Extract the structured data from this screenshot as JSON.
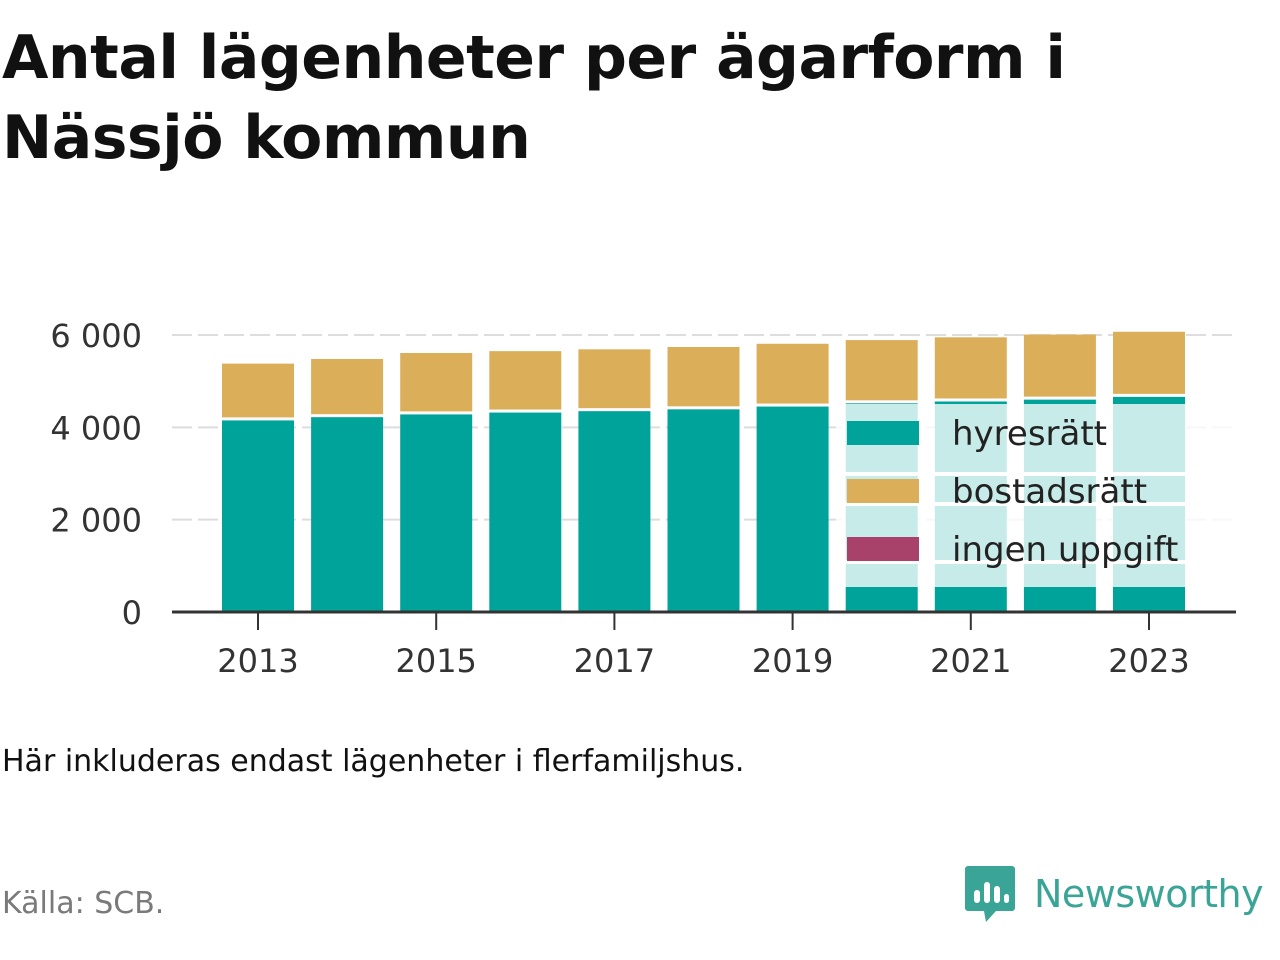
{
  "title": "Antal lägenheter per ägarform i Nässjö kommun",
  "subtitle": "Här inkluderas endast lägenheter i flerfamiljshus.",
  "source": "Källa: SCB.",
  "brand": "Newsworthy",
  "colors": {
    "hyresratt": "#00a399",
    "bostadsratt": "#dbae59",
    "ingen_uppgift": "#a8426a",
    "highlight_band": "#c9ebe6",
    "grid": "#dddddd",
    "axis": "#333333",
    "brand": "#3aa597"
  },
  "chart_data": {
    "type": "bar",
    "stacked": true,
    "categories": [
      "2013",
      "2014",
      "2015",
      "2016",
      "2017",
      "2018",
      "2019",
      "2020",
      "2021",
      "2022",
      "2023"
    ],
    "x_tick_labels": [
      "2013",
      "2015",
      "2017",
      "2019",
      "2021",
      "2023"
    ],
    "y_ticks": [
      0,
      2000,
      4000,
      6000
    ],
    "y_tick_labels": [
      "0",
      "2 000",
      "4 000",
      "6 000"
    ],
    "ylim": [
      0,
      6100
    ],
    "grid": true,
    "legend_position": "inside-right",
    "series": [
      {
        "name": "hyresrätt",
        "color_key": "hyresratt",
        "values": [
          4150,
          4220,
          4280,
          4320,
          4350,
          4390,
          4450,
          4520,
          4560,
          4600,
          4660
        ]
      },
      {
        "name": "bostadsrätt",
        "color_key": "bostadsratt",
        "values": [
          1230,
          1260,
          1330,
          1330,
          1340,
          1350,
          1360,
          1370,
          1390,
          1410,
          1410
        ]
      },
      {
        "name": "ingen uppgift",
        "color_key": "ingen_uppgift",
        "values": [
          0,
          0,
          0,
          0,
          0,
          0,
          0,
          0,
          0,
          0,
          0
        ]
      }
    ]
  }
}
